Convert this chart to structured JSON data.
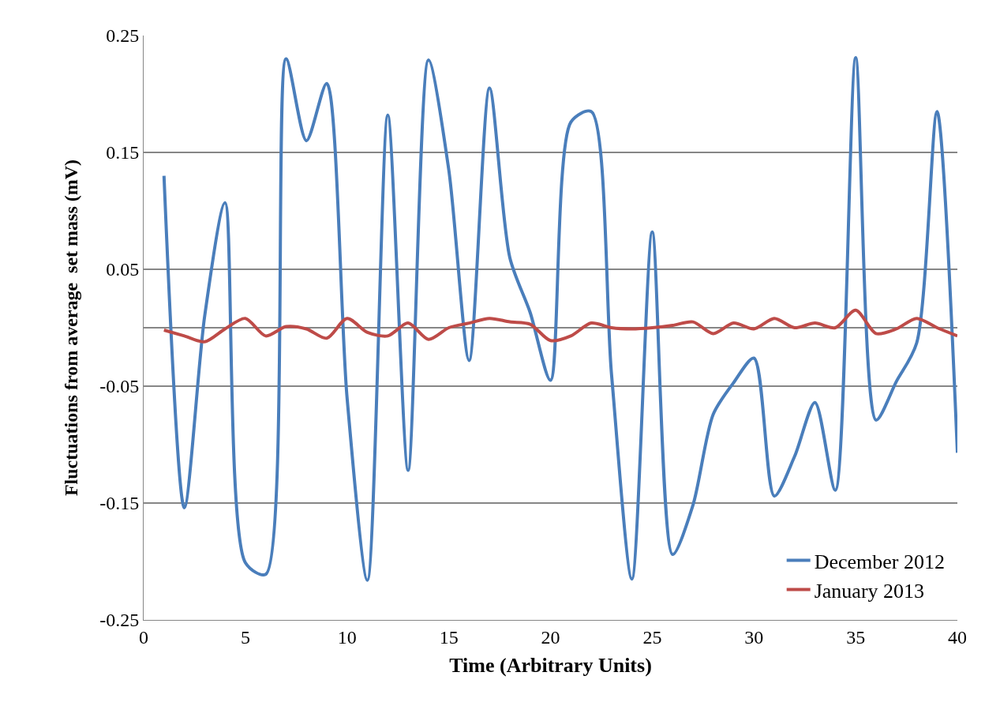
{
  "chart_data": {
    "type": "line",
    "xlabel": "Time (Arbitrary Units)",
    "ylabel": "Fluctuations from average  set mass (mV)",
    "x": [
      1,
      2,
      3,
      4,
      5,
      6,
      7,
      8,
      9,
      10,
      11,
      12,
      13,
      14,
      15,
      16,
      17,
      18,
      19,
      20,
      21,
      22,
      23,
      24,
      25,
      26,
      27,
      28,
      29,
      30,
      31,
      32,
      33,
      34,
      35,
      36,
      37,
      38,
      39,
      40
    ],
    "series": [
      {
        "name": "December 2012",
        "color": "#4a7ebb",
        "values": [
          0.13,
          -0.154,
          0.01,
          0.107,
          -0.201,
          -0.211,
          0.23,
          0.16,
          0.209,
          -0.06,
          -0.216,
          0.182,
          -0.122,
          0.229,
          0.135,
          -0.028,
          0.205,
          0.06,
          0.013,
          -0.045,
          0.176,
          0.185,
          -0.04,
          -0.215,
          0.082,
          -0.194,
          -0.152,
          -0.074,
          -0.047,
          -0.026,
          -0.144,
          -0.11,
          -0.064,
          -0.139,
          0.231,
          -0.079,
          -0.046,
          -0.013,
          0.185,
          -0.107
        ]
      },
      {
        "name": "January 2013",
        "color": "#be4b48",
        "values": [
          -0.002,
          -0.007,
          -0.012,
          -0.001,
          0.008,
          -0.007,
          0.001,
          -0.001,
          -0.009,
          0.008,
          -0.004,
          -0.007,
          0.004,
          -0.01,
          0,
          0.004,
          0.008,
          0.005,
          0.003,
          -0.011,
          -0.007,
          0.004,
          0,
          -0.001,
          0,
          0.002,
          0.005,
          -0.005,
          0.004,
          -0.001,
          0.008,
          0,
          0.004,
          0,
          0.015,
          -0.005,
          -0.001,
          0.008,
          0,
          -0.007
        ]
      }
    ],
    "xlim": [
      0,
      40
    ],
    "xticks": [
      0,
      5,
      10,
      15,
      20,
      25,
      30,
      35,
      40
    ],
    "ylim": [
      -0.25,
      0.25
    ],
    "yticks": [
      -0.25,
      -0.15,
      -0.05,
      0.05,
      0.15,
      0.25
    ],
    "grid": "y",
    "legend": "bottom right",
    "marker": "none",
    "line_style": "solid"
  }
}
